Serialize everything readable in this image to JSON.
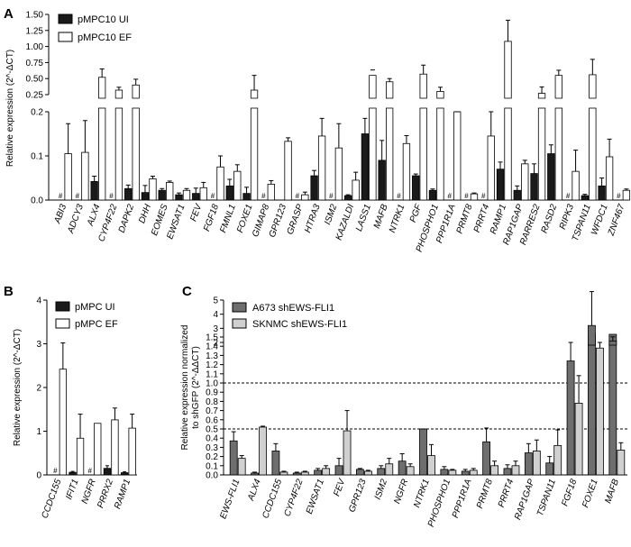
{
  "figure": {
    "panels": [
      "A",
      "B",
      "C"
    ]
  },
  "chart_data": [
    {
      "id": "A",
      "type": "bar",
      "ylabel": "Relative expression (2^-ΔCT)",
      "y_axis_break": true,
      "lower_range": [
        0,
        0.2
      ],
      "upper_range": [
        0.25,
        1.5
      ],
      "lower_ticks": [
        "0.0",
        "0.1",
        "0.2"
      ],
      "upper_ticks": [
        "0.25",
        "0.50",
        "0.75",
        "1.00",
        "1.25",
        "1.50"
      ],
      "series": [
        {
          "name": "pMPC10 UI",
          "color": "#1a1a1a"
        },
        {
          "name": "pMPC10 EF",
          "color": "#ffffff"
        }
      ],
      "categories": [
        "ABI3",
        "ADCY3",
        "ALX4",
        "CYP4F22",
        "DAPK2",
        "DHH",
        "EOMES",
        "EWSAT1",
        "FEV",
        "FGF18",
        "FMNL1",
        "FOXE1",
        "GIMAP8",
        "GPR123",
        "GRASP",
        "HTRA3",
        "ISM2",
        "KAZALDI",
        "LASS1",
        "MAFB",
        "NTRK1",
        "PGF",
        "PHOSPHO1",
        "PPP1R1A",
        "PRMT8",
        "PRRT4",
        "RAMP1",
        "RAP1GAP",
        "RARRES2",
        "RASD2",
        "RIPK3",
        "TSPAN11",
        "WFDC1",
        "ZNF467"
      ],
      "ui": [
        0,
        0,
        0.042,
        0,
        0.026,
        0.017,
        0.022,
        0.012,
        0.015,
        0,
        0.032,
        0.015,
        0,
        0,
        0,
        0.055,
        0,
        0.01,
        0.15,
        0.09,
        0,
        0.055,
        0.022,
        0,
        0,
        0,
        0.07,
        0.022,
        0.06,
        0.105,
        0,
        0.01,
        0.032,
        0
      ],
      "ui_err": [
        0,
        0,
        0.012,
        0,
        0.008,
        0.016,
        0.004,
        0.004,
        0.012,
        0,
        0.015,
        0.014,
        0,
        0,
        0,
        0.012,
        0,
        0.002,
        0.035,
        0.045,
        0,
        0.004,
        0.003,
        0,
        0,
        0,
        0.016,
        0.01,
        0.022,
        0.02,
        0,
        0.003,
        0.018,
        0
      ],
      "ef": [
        0.105,
        0.108,
        0.52,
        0.32,
        0.4,
        0.048,
        0.04,
        0.022,
        0.028,
        0.075,
        0.065,
        0.32,
        0.036,
        0.133,
        0.012,
        0.145,
        0.118,
        0.045,
        0.55,
        0.45,
        0.128,
        0.57,
        0.3,
        0.2,
        0.014,
        0.145,
        1.08,
        0.082,
        0.27,
        0.55,
        0.065,
        0.56,
        0.098,
        0.022
      ],
      "ef_err": [
        0.068,
        0.072,
        0.13,
        0.045,
        0.09,
        0.006,
        0.003,
        0.004,
        0.012,
        0.025,
        0.015,
        0.23,
        0.008,
        0.008,
        0.006,
        0.04,
        0.055,
        0.018,
        0.0,
        0.05,
        0.018,
        0.14,
        0.065,
        0.0,
        0.002,
        0.055,
        0.33,
        0.008,
        0.1,
        0.08,
        0.048,
        0.24,
        0.04,
        0.003
      ],
      "hash_marker": "#",
      "hash_ui": [
        0,
        1,
        3,
        9,
        12,
        14,
        16,
        20,
        23,
        24,
        25,
        30,
        33
      ],
      "hash_ef": []
    },
    {
      "id": "B",
      "type": "bar",
      "ylabel": "Relative expression (2^-ΔCT)",
      "ylim": [
        0,
        4
      ],
      "yticks": [
        "0",
        "1",
        "2",
        "3",
        "4"
      ],
      "series": [
        {
          "name": "pMPC UI",
          "color": "#1a1a1a"
        },
        {
          "name": "pMPC EF",
          "color": "#ffffff"
        }
      ],
      "categories": [
        "CCDC155",
        "IFIT1",
        "NGFR",
        "PRRX2",
        "RAMP1"
      ],
      "ui": [
        0,
        0.06,
        0,
        0.15,
        0.05
      ],
      "ui_err": [
        0,
        0.02,
        0,
        0.06,
        0.02
      ],
      "ef": [
        2.42,
        0.84,
        1.18,
        1.26,
        1.07
      ],
      "ef_err": [
        0.6,
        0.55,
        0,
        0.27,
        0.32
      ],
      "hash_marker": "#",
      "hash_ui": [
        0,
        2
      ]
    },
    {
      "id": "C",
      "type": "bar",
      "ylabel": "Relative expression normalized\nto shGFP (2^-ΔΔCT)",
      "ylabel_line1": "Relative expression normalized",
      "ylabel_line2": "to shGFP (2^-ΔΔCT)",
      "y_axis_break": true,
      "lower_range": [
        0,
        1.5
      ],
      "upper_range": [
        2,
        5
      ],
      "lower_ticks": [
        "0.0",
        "0.1",
        "0.2",
        "0.3",
        "0.4",
        "0.5",
        "0.6",
        "0.7",
        "0.8",
        "0.9",
        "1.0",
        "1.1",
        "1.2",
        "1.3",
        "1.4",
        "1.5"
      ],
      "upper_ticks": [
        "2",
        "3",
        "4",
        "5"
      ],
      "reference_lines": [
        1.0,
        0.5
      ],
      "series": [
        {
          "name": "A673 shEWS-FLI1",
          "color": "#6e6e6e"
        },
        {
          "name": "SKNMC shEWS-FLI1",
          "color": "#d0d0d0"
        }
      ],
      "categories": [
        "EWS-FLI1",
        "ALX4",
        "CCDC155",
        "CYP4F22",
        "EWSAT1",
        "FEV",
        "GPR123",
        "ISM2",
        "NGFR",
        "NTRK1",
        "PHOSPHO1",
        "PPP1R1A",
        "PRMT8",
        "PRRT4",
        "RAP1GAP",
        "TSPAN11",
        "FGF18",
        "FOXE1",
        "MAFB"
      ],
      "a673": [
        0.37,
        0.02,
        0.26,
        0.02,
        0.05,
        0.1,
        0.06,
        0.07,
        0.15,
        0.5,
        0.06,
        0.04,
        0.36,
        0.07,
        0.24,
        0.13,
        1.24,
        3.2,
        2.1
      ],
      "a673_err": [
        0.1,
        0.01,
        0.08,
        0.01,
        0.02,
        0.08,
        0.01,
        0.03,
        0.08,
        0.0,
        0.03,
        0.02,
        0.15,
        0.04,
        0.1,
        0.07,
        0.35,
        2.4,
        0.3
      ],
      "sknmc": [
        0.18,
        0.52,
        0.03,
        0.03,
        0.07,
        0.48,
        0.04,
        0.12,
        0.09,
        0.21,
        0.05,
        0.05,
        0.1,
        0.1,
        0.26,
        0.32,
        0.78,
        1.38,
        0.27
      ],
      "sknmc_err": [
        0.03,
        0.01,
        0.01,
        0.01,
        0.03,
        0.22,
        0.01,
        0.06,
        0.03,
        0.12,
        0.01,
        0.02,
        0.05,
        0.05,
        0.12,
        0.17,
        0.3,
        0.15,
        0.08
      ]
    }
  ]
}
